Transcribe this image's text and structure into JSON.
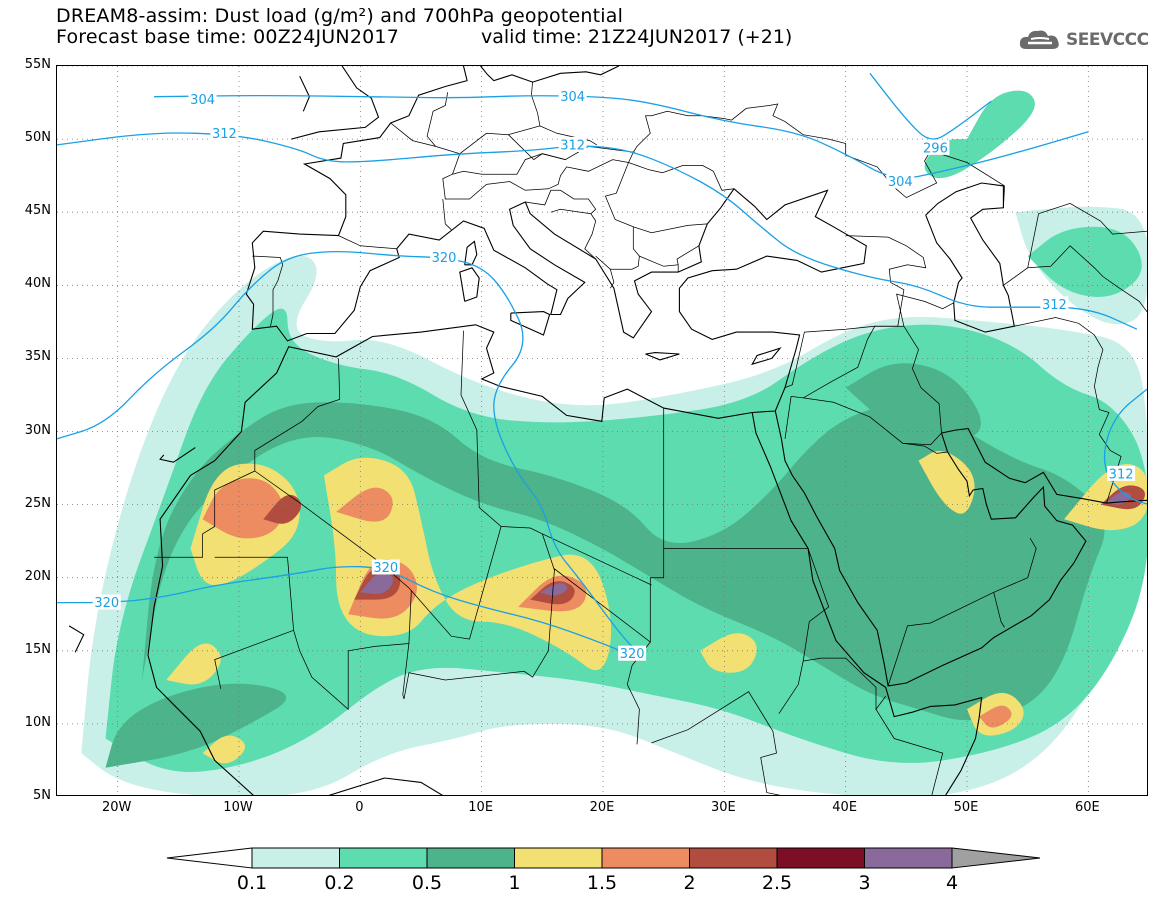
{
  "header": {
    "title_line1": "DREAM8-assim: Dust load (g/m²) and 700hPa geopotential",
    "title_line2": "Forecast base time: 00Z24JUN2017",
    "valid_time": "valid time: 21Z24JUN2017 (+21)",
    "logo_text": "SEEVCCC",
    "logo_icon": "cloud-icon"
  },
  "axes": {
    "lat_labels": [
      "55N",
      "50N",
      "45N",
      "40N",
      "35N",
      "30N",
      "25N",
      "20N",
      "15N",
      "10N",
      "5N"
    ],
    "lat_values": [
      55,
      50,
      45,
      40,
      35,
      30,
      25,
      20,
      15,
      10,
      5
    ],
    "lon_labels": [
      "20W",
      "10W",
      "0",
      "10E",
      "20E",
      "30E",
      "40E",
      "50E",
      "60E"
    ],
    "lon_values": [
      -20,
      -10,
      0,
      10,
      20,
      30,
      40,
      50,
      60
    ],
    "lon_range": [
      -25,
      65
    ],
    "lat_range": [
      5,
      55
    ]
  },
  "contours": {
    "labels": [
      {
        "text": "304",
        "lon": -13,
        "lat": 52.7
      },
      {
        "text": "304",
        "lon": 17.5,
        "lat": 52.9
      },
      {
        "text": "312",
        "lon": -11.2,
        "lat": 50.4
      },
      {
        "text": "312",
        "lon": 17.5,
        "lat": 49.6
      },
      {
        "text": "296",
        "lon": 47.4,
        "lat": 49.4
      },
      {
        "text": "304",
        "lon": 44.5,
        "lat": 47.1
      },
      {
        "text": "320",
        "lon": 6.9,
        "lat": 41.9
      },
      {
        "text": "312",
        "lon": 57.2,
        "lat": 38.7
      },
      {
        "text": "320",
        "lon": 2.1,
        "lat": 20.7
      },
      {
        "text": "320",
        "lon": -20.9,
        "lat": 18.3
      },
      {
        "text": "320",
        "lon": 22.4,
        "lat": 14.8
      },
      {
        "text": "312",
        "lon": 62.7,
        "lat": 27.1
      }
    ],
    "color": "#1aa0e6"
  },
  "colorbar": {
    "labels": [
      "0.1",
      "0.2",
      "0.5",
      "1",
      "1.5",
      "2",
      "2.5",
      "3",
      "4"
    ],
    "colors": [
      "#c8f0e8",
      "#5ddcb0",
      "#4db38a",
      "#f2e072",
      "#ec8c60",
      "#b04d3e",
      "#7c0e26",
      "#8a6a9a"
    ],
    "under_color": "#ffffff",
    "over_color": "#a0a0a0"
  }
}
